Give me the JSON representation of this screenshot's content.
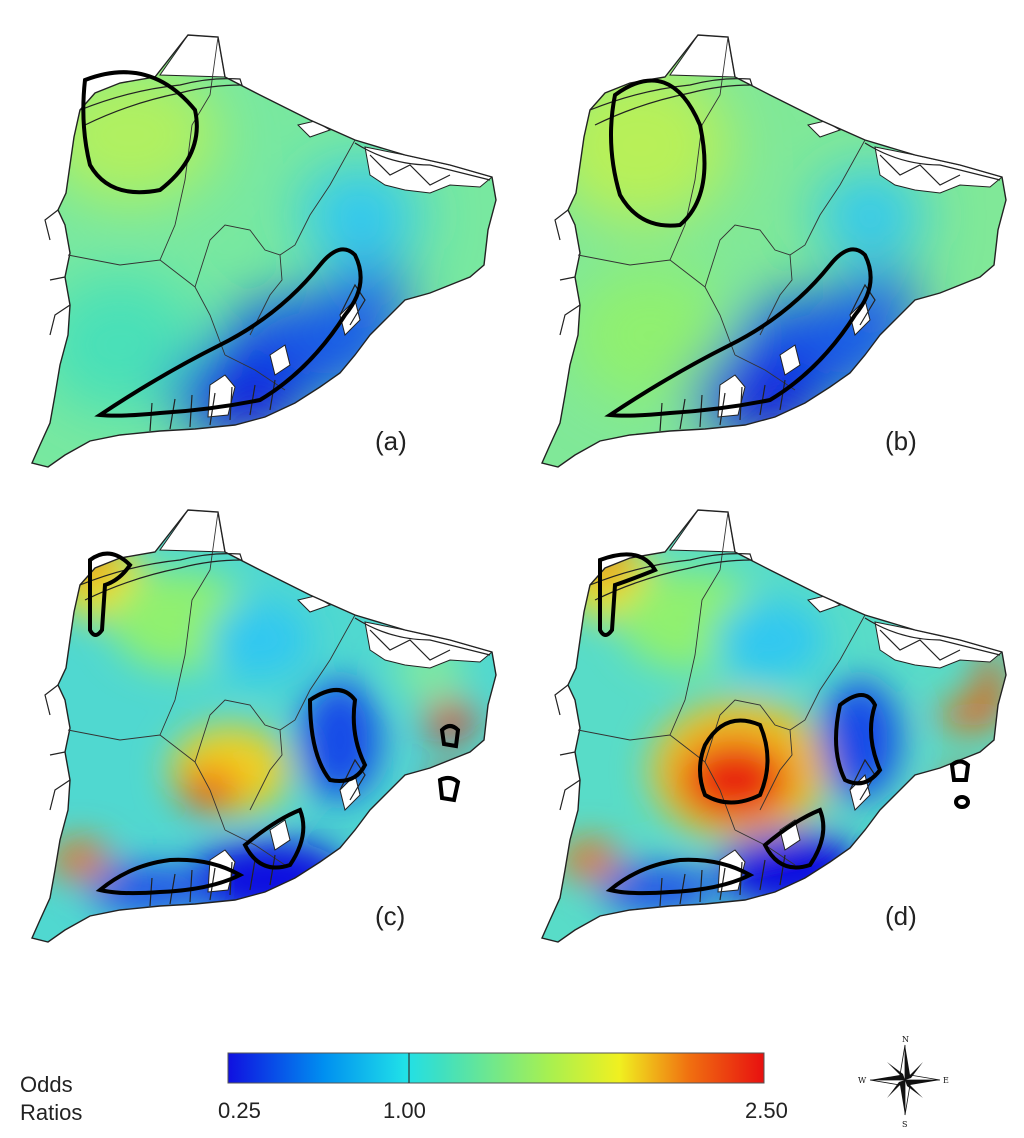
{
  "panels": [
    {
      "id": "a",
      "label": "(a)"
    },
    {
      "id": "b",
      "label": "(b)"
    },
    {
      "id": "c",
      "label": "(c)"
    },
    {
      "id": "d",
      "label": "(d)"
    }
  ],
  "legend": {
    "title_line1": "Odds",
    "title_line2": "Ratios",
    "min_label": "0.25",
    "mid_label": "1.00",
    "max_label": "2.50",
    "min_value": 0.25,
    "mid_value": 1.0,
    "max_value": 2.5,
    "colors": [
      "#1010e0",
      "#00c8f0",
      "#40e0c0",
      "#a0f060",
      "#f0f020",
      "#f08010",
      "#e81010"
    ]
  },
  "compass": {
    "north": "N",
    "south": "S",
    "east": "E",
    "west": "W"
  },
  "colors": {
    "land_low": "#1010e0",
    "land_neutral": "#50e0b0",
    "land_high": "#e81010",
    "outline": "#000000",
    "water": "#ffffff"
  }
}
